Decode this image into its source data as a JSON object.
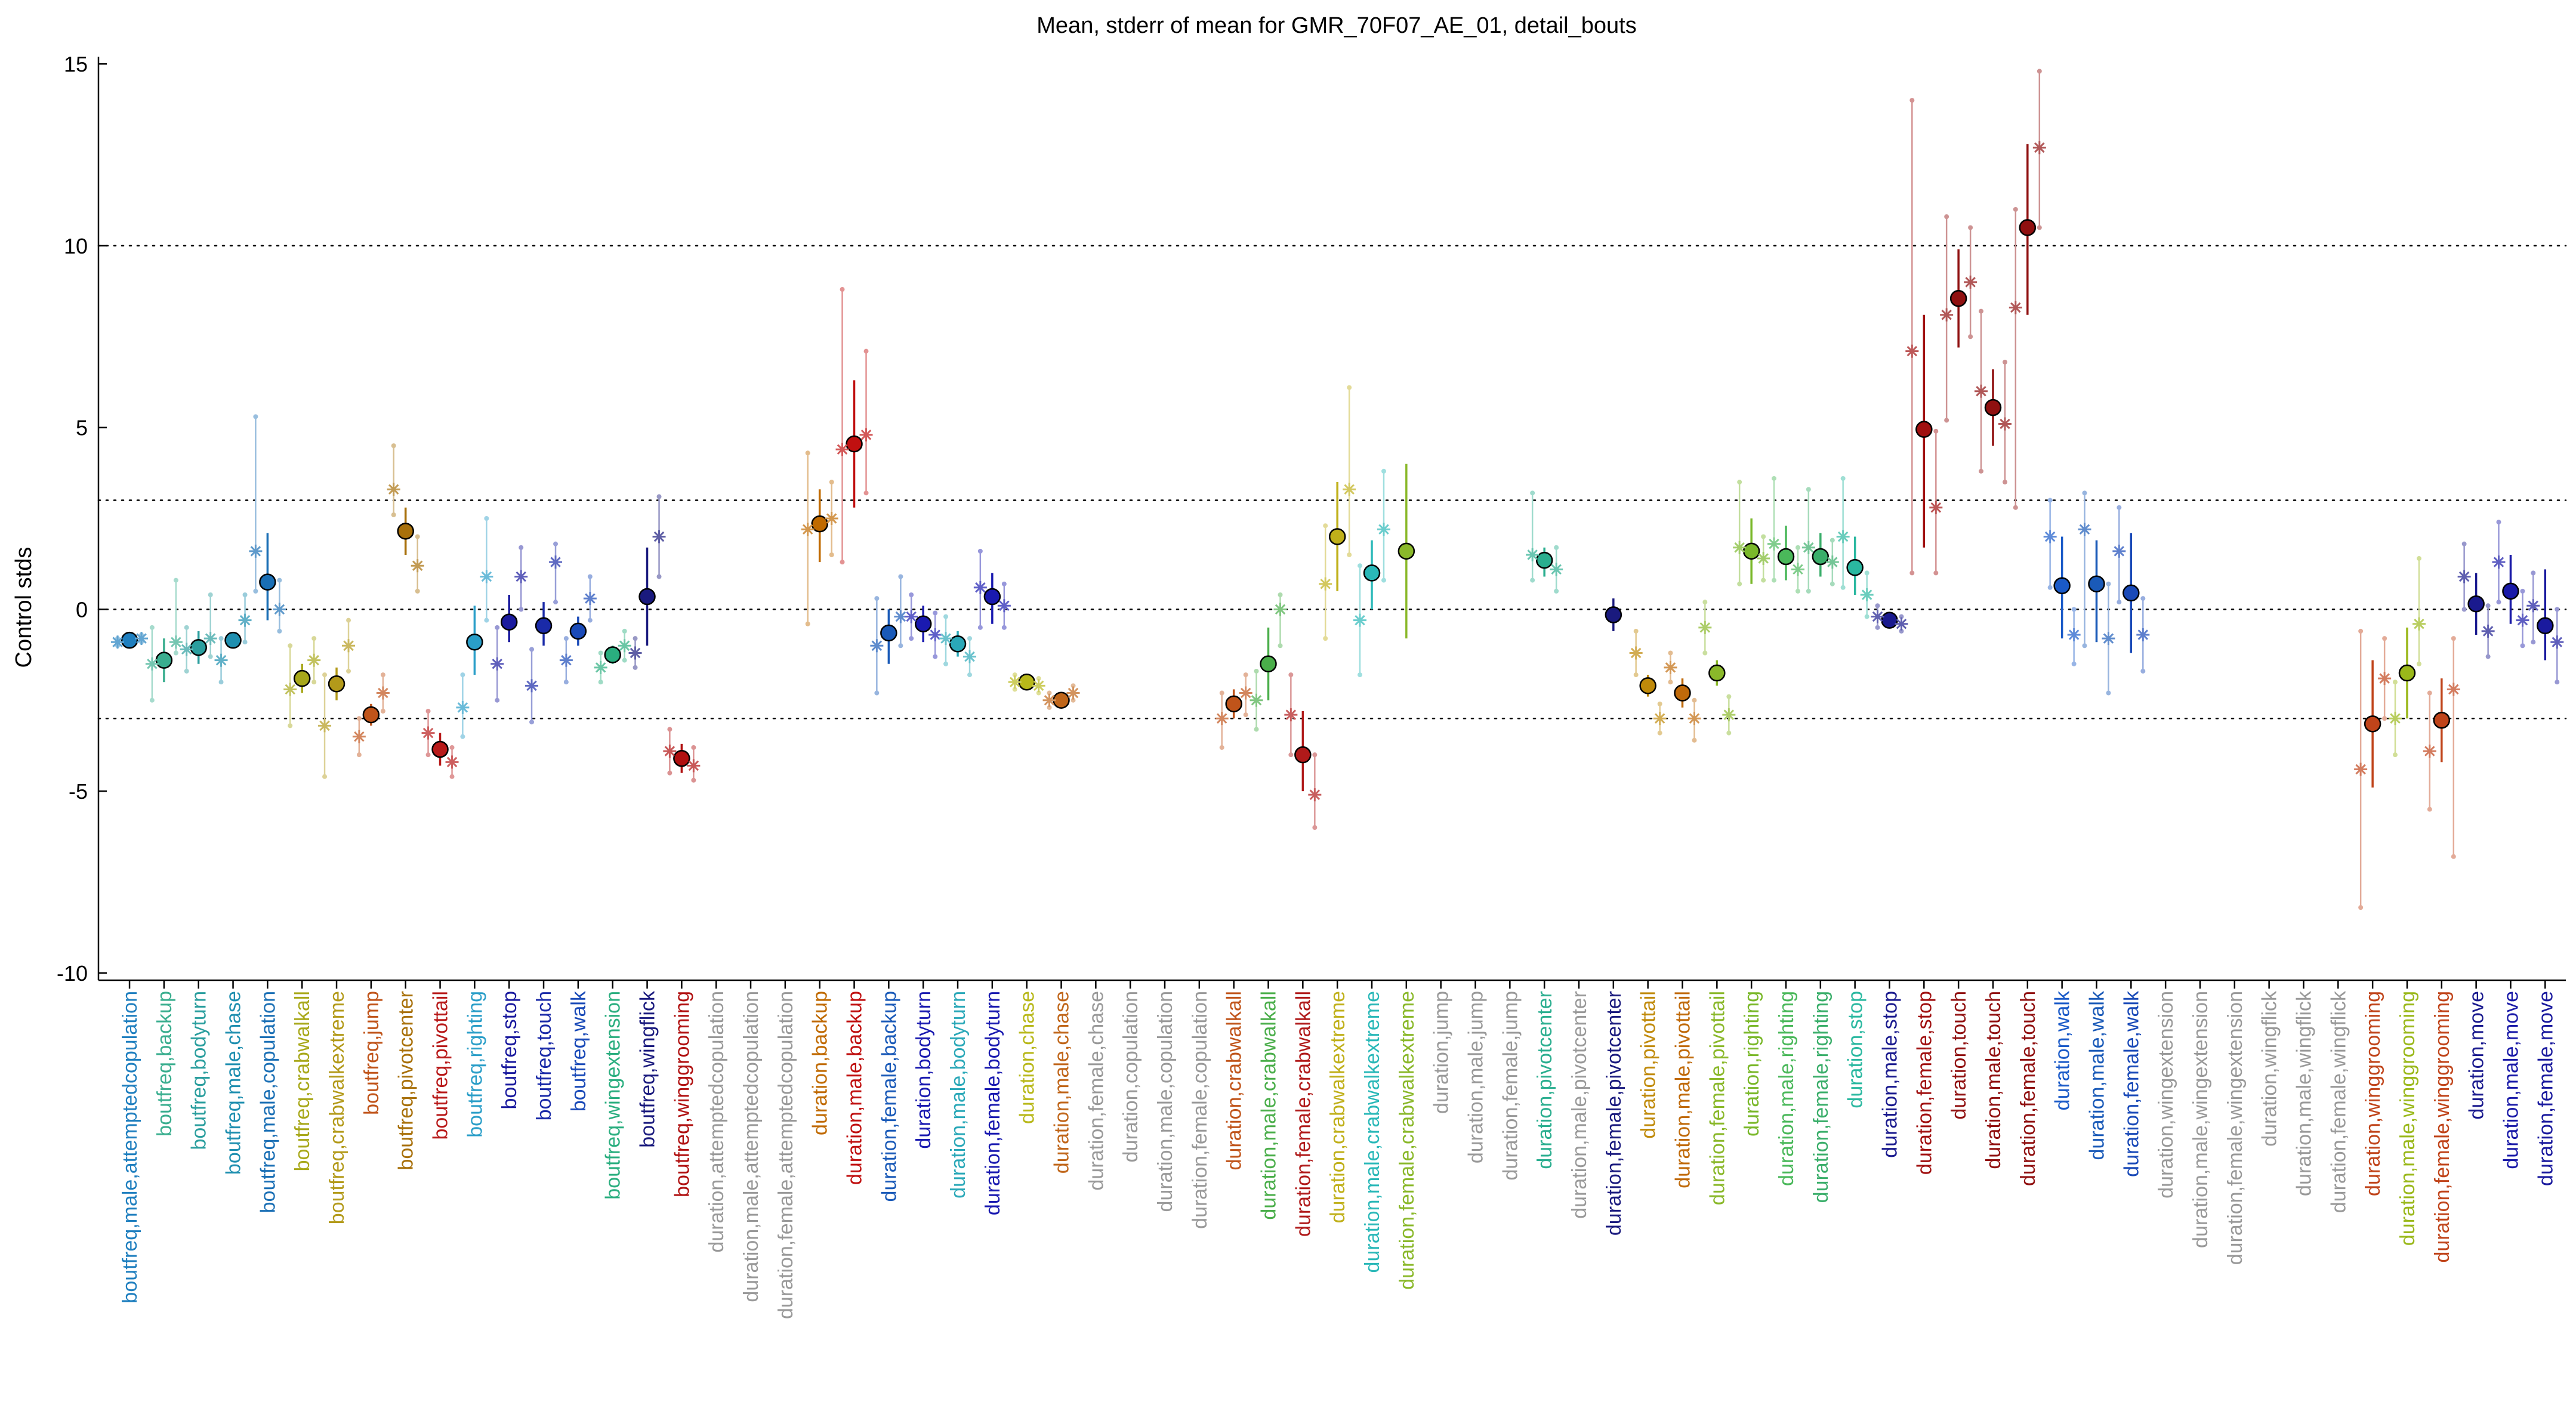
{
  "chart_data": {
    "type": "scatter",
    "title": "Mean, stderr of mean for GMR_70F07_AE_01, detail_bouts",
    "ylabel": "Control stds",
    "xlabel": "",
    "ylim": [
      -10.2,
      15.2
    ],
    "yticks": [
      -10,
      -5,
      0,
      5,
      10,
      15
    ],
    "reference_lines": [
      -3,
      0,
      3,
      10
    ],
    "grid": false,
    "categories": [
      "boutfreq,male,attemptedcopulation",
      "boutfreq,backup",
      "boutfreq,bodyturn",
      "boutfreq,male,chase",
      "boutfreq,male,copulation",
      "boutfreq,crabwalkall",
      "boutfreq,crabwalkextreme",
      "boutfreq,jump",
      "boutfreq,pivotcenter",
      "boutfreq,pivottail",
      "boutfreq,righting",
      "boutfreq,stop",
      "boutfreq,touch",
      "boutfreq,walk",
      "boutfreq,wingextension",
      "boutfreq,wingflick",
      "boutfreq,winggrooming",
      "duration,attemptedcopulation",
      "duration,male,attemptedcopulation",
      "duration,female,attemptedcopulation",
      "duration,backup",
      "duration,male,backup",
      "duration,female,backup",
      "duration,bodyturn",
      "duration,male,bodyturn",
      "duration,female,bodyturn",
      "duration,chase",
      "duration,male,chase",
      "duration,female,chase",
      "duration,copulation",
      "duration,male,copulation",
      "duration,female,copulation",
      "duration,crabwalkall",
      "duration,male,crabwalkall",
      "duration,female,crabwalkall",
      "duration,crabwalkextreme",
      "duration,male,crabwalkextreme",
      "duration,female,crabwalkextreme",
      "duration,jump",
      "duration,male,jump",
      "duration,female,jump",
      "duration,pivotcenter",
      "duration,male,pivotcenter",
      "duration,female,pivotcenter",
      "duration,pivottail",
      "duration,male,pivottail",
      "duration,female,pivottail",
      "duration,righting",
      "duration,male,righting",
      "duration,female,righting",
      "duration,stop",
      "duration,male,stop",
      "duration,female,stop",
      "duration,touch",
      "duration,male,touch",
      "duration,female,touch",
      "duration,walk",
      "duration,male,walk",
      "duration,female,walk",
      "duration,wingextension",
      "duration,male,wingextension",
      "duration,female,wingextension",
      "duration,wingflick",
      "duration,male,wingflick",
      "duration,female,wingflick",
      "duration,winggrooming",
      "duration,male,winggrooming",
      "duration,female,winggrooming",
      "duration,move",
      "duration,male,move",
      "duration,female,move"
    ],
    "label_colors": [
      "#1f7fbf",
      "#3aae8f",
      "#2a9e9e",
      "#1f8fb0",
      "#1a6fb5",
      "#a8a81a",
      "#b39a1a",
      "#c0541a",
      "#a8700a",
      "#b81a1a",
      "#2a9ec8",
      "#1a1a9e",
      "#1a2aa8",
      "#1a4ab8",
      "#2aae7f",
      "#1a1a7e",
      "#b01010",
      "#999999",
      "#999999",
      "#999999",
      "#c06a00",
      "#c01010",
      "#1a5ab8",
      "#1a1ab0",
      "#2aa8b8",
      "#1a1ab0",
      "#b8b81a",
      "#c0661a",
      "#999999",
      "#999999",
      "#999999",
      "#999999",
      "#c0541a",
      "#4aae4a",
      "#b01a1a",
      "#c0b01a",
      "#2ab8b8",
      "#8ab82a",
      "#999999",
      "#999999",
      "#999999",
      "#2aae8f",
      "#999999",
      "#1a1a7e",
      "#c08a0a",
      "#c06a0a",
      "#8ab82a",
      "#7ab82a",
      "#4ab85a",
      "#3aae6a",
      "#2ab8a0",
      "#1a1a8e",
      "#a01010",
      "#901010",
      "#901010",
      "#901010",
      "#1a5ac8",
      "#1a5ab8",
      "#1a4ab8",
      "#999999",
      "#999999",
      "#999999",
      "#999999",
      "#999999",
      "#999999",
      "#c0441a",
      "#9ab81a",
      "#c0441a",
      "#1a1a8e",
      "#1a1aa8",
      "#1a1a9e"
    ],
    "series": [
      {
        "marker": "circle",
        "values": [
          -0.85,
          -1.4,
          -1.05,
          -0.85,
          0.75,
          -1.9,
          -2.05,
          -2.9,
          2.15,
          -3.85,
          -0.9,
          -0.35,
          -0.45,
          -0.6,
          -1.25,
          0.35,
          -4.1,
          null,
          null,
          null,
          2.35,
          4.55,
          -0.65,
          -0.4,
          -0.95,
          0.35,
          -2.0,
          -2.5,
          null,
          null,
          null,
          null,
          -2.6,
          -1.5,
          -4.0,
          2.0,
          1.0,
          1.6,
          null,
          null,
          null,
          1.35,
          null,
          -0.15,
          -2.1,
          -2.3,
          -1.75,
          1.6,
          1.45,
          1.45,
          1.15,
          -0.3,
          4.95,
          8.55,
          5.55,
          10.5,
          0.65,
          0.7,
          0.45,
          null,
          null,
          null,
          null,
          null,
          null,
          -3.15,
          -1.75,
          -3.05,
          0.15,
          0.5,
          -0.45
        ],
        "se_low": [
          -1.0,
          -2.0,
          -1.5,
          -1.0,
          -0.3,
          -2.3,
          -2.5,
          -3.2,
          1.5,
          -4.3,
          -1.8,
          -0.9,
          -1.0,
          -1.0,
          -1.5,
          -1.0,
          -4.5,
          null,
          null,
          null,
          1.3,
          2.8,
          -1.5,
          -0.9,
          -1.3,
          -0.4,
          -2.1,
          -2.6,
          null,
          null,
          null,
          null,
          -3.0,
          -2.5,
          -5.0,
          0.5,
          0.0,
          -0.8,
          null,
          null,
          null,
          0.9,
          null,
          -0.6,
          -2.4,
          -2.7,
          -2.1,
          0.7,
          0.8,
          0.9,
          0.4,
          -0.5,
          1.7,
          7.2,
          4.5,
          8.1,
          -0.8,
          -0.9,
          -1.2,
          null,
          null,
          null,
          null,
          null,
          null,
          -4.9,
          -3.0,
          -4.2,
          -0.7,
          -0.4,
          -1.4
        ],
        "se_high": [
          -0.7,
          -0.8,
          -0.6,
          -0.7,
          2.1,
          -1.5,
          -1.6,
          -2.6,
          2.8,
          -3.4,
          0.1,
          0.4,
          0.2,
          -0.2,
          -1.0,
          1.7,
          -3.7,
          null,
          null,
          null,
          3.3,
          6.3,
          0.0,
          0.1,
          -0.6,
          1.0,
          -1.9,
          -2.4,
          null,
          null,
          null,
          null,
          -2.2,
          -0.5,
          -2.8,
          3.5,
          1.9,
          4.0,
          null,
          null,
          null,
          1.7,
          null,
          0.3,
          -1.8,
          -1.9,
          -1.4,
          2.5,
          2.3,
          2.1,
          2.0,
          -0.1,
          8.1,
          9.9,
          6.6,
          12.8,
          2.0,
          1.9,
          2.1,
          null,
          null,
          null,
          null,
          null,
          null,
          -1.4,
          -0.5,
          -1.9,
          1.0,
          1.5,
          1.1
        ]
      },
      {
        "marker": "asterisk",
        "values": [
          -0.9,
          -1.5,
          -1.1,
          -1.4,
          1.6,
          -2.2,
          -3.2,
          -3.5,
          3.3,
          -3.4,
          -2.7,
          -1.5,
          -2.1,
          -1.4,
          -1.6,
          -1.2,
          -3.9,
          null,
          null,
          null,
          2.2,
          4.4,
          -1.0,
          -0.2,
          -0.8,
          0.6,
          -2.0,
          -2.5,
          null,
          null,
          null,
          null,
          -3.0,
          -2.5,
          -2.9,
          0.7,
          -0.3,
          null,
          null,
          null,
          null,
          1.5,
          null,
          null,
          -1.2,
          -1.6,
          -0.5,
          1.7,
          1.8,
          1.7,
          2.0,
          -0.2,
          7.1,
          8.1,
          6.0,
          8.3,
          2.0,
          2.2,
          1.6,
          null,
          null,
          null,
          null,
          null,
          null,
          -4.4,
          -3.0,
          -3.9,
          0.9,
          1.3,
          0.1
        ],
        "se_low": [
          -1.0,
          -2.5,
          -1.7,
          -2.0,
          0.5,
          -3.2,
          -4.6,
          -4.0,
          2.6,
          -4.0,
          -3.5,
          -2.5,
          -3.1,
          -2.0,
          -2.0,
          -1.6,
          -4.5,
          null,
          null,
          null,
          -0.4,
          1.3,
          -2.3,
          -0.8,
          -1.5,
          -0.5,
          -2.2,
          -2.7,
          null,
          null,
          null,
          null,
          -3.8,
          -3.3,
          -4.0,
          -0.8,
          -1.8,
          null,
          null,
          null,
          null,
          0.8,
          null,
          null,
          -1.8,
          -2.0,
          -1.2,
          0.7,
          0.8,
          0.5,
          0.6,
          -0.5,
          1.0,
          5.2,
          3.8,
          2.8,
          0.6,
          -1.0,
          0.2,
          null,
          null,
          null,
          null,
          null,
          null,
          -8.2,
          -4.0,
          -5.5,
          0.0,
          0.2,
          -0.9
        ],
        "se_high": [
          -0.8,
          -0.5,
          -0.5,
          -0.8,
          5.3,
          -1.0,
          -1.8,
          -3.0,
          4.5,
          -2.8,
          -1.8,
          -0.5,
          -1.1,
          -0.8,
          -1.2,
          -0.8,
          -3.3,
          null,
          null,
          null,
          4.3,
          8.8,
          0.3,
          0.4,
          -0.2,
          1.6,
          -1.8,
          -2.3,
          null,
          null,
          null,
          null,
          -2.3,
          -1.7,
          -1.8,
          2.3,
          1.2,
          null,
          null,
          null,
          null,
          3.2,
          null,
          null,
          -0.6,
          -1.2,
          0.2,
          3.5,
          3.6,
          3.3,
          3.6,
          0.1,
          14.0,
          10.8,
          8.2,
          11.0,
          3.0,
          3.2,
          2.8,
          null,
          null,
          null,
          null,
          null,
          null,
          -0.6,
          -2.0,
          -2.3,
          1.8,
          2.4,
          1.0
        ]
      },
      {
        "marker": "asterisk",
        "values": [
          -0.8,
          -0.9,
          -0.8,
          -0.3,
          0.0,
          -1.4,
          -1.0,
          -2.3,
          1.2,
          -4.2,
          0.9,
          0.9,
          1.3,
          0.3,
          -1.0,
          2.0,
          -4.3,
          null,
          null,
          null,
          2.5,
          4.8,
          -0.2,
          -0.7,
          -1.3,
          0.1,
          -2.1,
          -2.3,
          null,
          null,
          null,
          null,
          -2.3,
          0.0,
          -5.1,
          3.3,
          2.2,
          null,
          null,
          null,
          null,
          1.1,
          null,
          null,
          -3.0,
          -3.0,
          -2.9,
          1.4,
          1.1,
          1.3,
          0.4,
          -0.4,
          2.8,
          9.0,
          5.1,
          12.7,
          -0.7,
          -0.8,
          -0.7,
          null,
          null,
          null,
          null,
          null,
          null,
          -1.9,
          -0.4,
          -2.2,
          -0.6,
          -0.3,
          -0.9
        ],
        "se_low": [
          -0.9,
          -1.2,
          -1.3,
          -0.9,
          -0.6,
          -2.0,
          -1.7,
          -2.8,
          0.5,
          -4.6,
          -0.3,
          0.0,
          0.2,
          -0.3,
          -1.4,
          0.9,
          -4.7,
          null,
          null,
          null,
          1.5,
          3.2,
          -1.0,
          -1.3,
          -1.8,
          -0.5,
          -2.3,
          -2.5,
          null,
          null,
          null,
          null,
          -2.9,
          -1.0,
          -6.0,
          1.5,
          0.8,
          null,
          null,
          null,
          null,
          0.5,
          null,
          null,
          -3.4,
          -3.6,
          -3.4,
          0.8,
          0.5,
          0.7,
          -0.2,
          -0.6,
          1.0,
          7.5,
          3.5,
          10.5,
          -1.5,
          -2.3,
          -1.7,
          null,
          null,
          null,
          null,
          null,
          null,
          -3.0,
          -1.5,
          -6.8,
          -1.3,
          -1.0,
          -2.0
        ],
        "se_high": [
          -0.7,
          0.8,
          0.4,
          0.4,
          0.8,
          -0.8,
          -0.3,
          -1.8,
          2.0,
          -3.8,
          2.5,
          1.7,
          1.8,
          0.9,
          -0.6,
          3.1,
          -3.8,
          null,
          null,
          null,
          3.5,
          7.1,
          0.9,
          -0.1,
          -0.8,
          0.7,
          -1.9,
          -2.1,
          null,
          null,
          null,
          null,
          -1.8,
          0.4,
          -4.0,
          6.1,
          3.8,
          null,
          null,
          null,
          null,
          1.7,
          null,
          null,
          -2.6,
          -2.5,
          -2.4,
          2.0,
          1.7,
          1.9,
          1.0,
          -0.2,
          4.9,
          10.5,
          6.8,
          14.8,
          0.0,
          0.7,
          0.3,
          null,
          null,
          null,
          null,
          null,
          null,
          -0.8,
          1.4,
          -0.8,
          0.1,
          0.5,
          0.0
        ]
      }
    ]
  }
}
